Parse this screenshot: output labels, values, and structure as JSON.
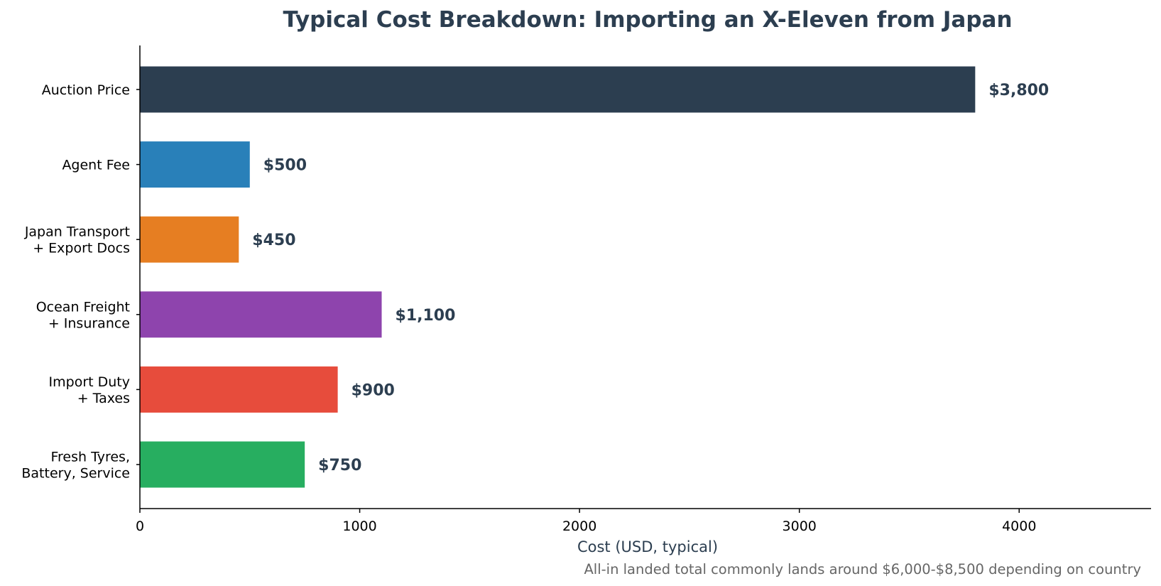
{
  "chart_data": {
    "type": "bar",
    "orientation": "horizontal",
    "title": "Typical Cost Breakdown: Importing an X-Eleven from Japan",
    "xlabel": "Cost (USD, typical)",
    "ylabel": "",
    "categories": [
      "Auction Price",
      "Agent Fee",
      "Japan Transport\n+ Export Docs",
      "Ocean Freight\n+ Insurance",
      "Import Duty\n+ Taxes",
      "Fresh Tyres,\nBattery, Service"
    ],
    "values": [
      3800,
      500,
      450,
      1100,
      900,
      750
    ],
    "value_labels": [
      "$3,800",
      "$500",
      "$450",
      "$1,100",
      "$900",
      "$750"
    ],
    "colors": [
      "#2c3e50",
      "#2980b9",
      "#e67e22",
      "#8e44ad",
      "#e74c3c",
      "#27ae60"
    ],
    "xlim": [
      0,
      4600
    ],
    "xticks": [
      0,
      1000,
      2000,
      3000,
      4000
    ],
    "grid": false,
    "legend": "none",
    "footnote": "All-in landed total commonly lands around $6,000-$8,500 depending on country"
  }
}
